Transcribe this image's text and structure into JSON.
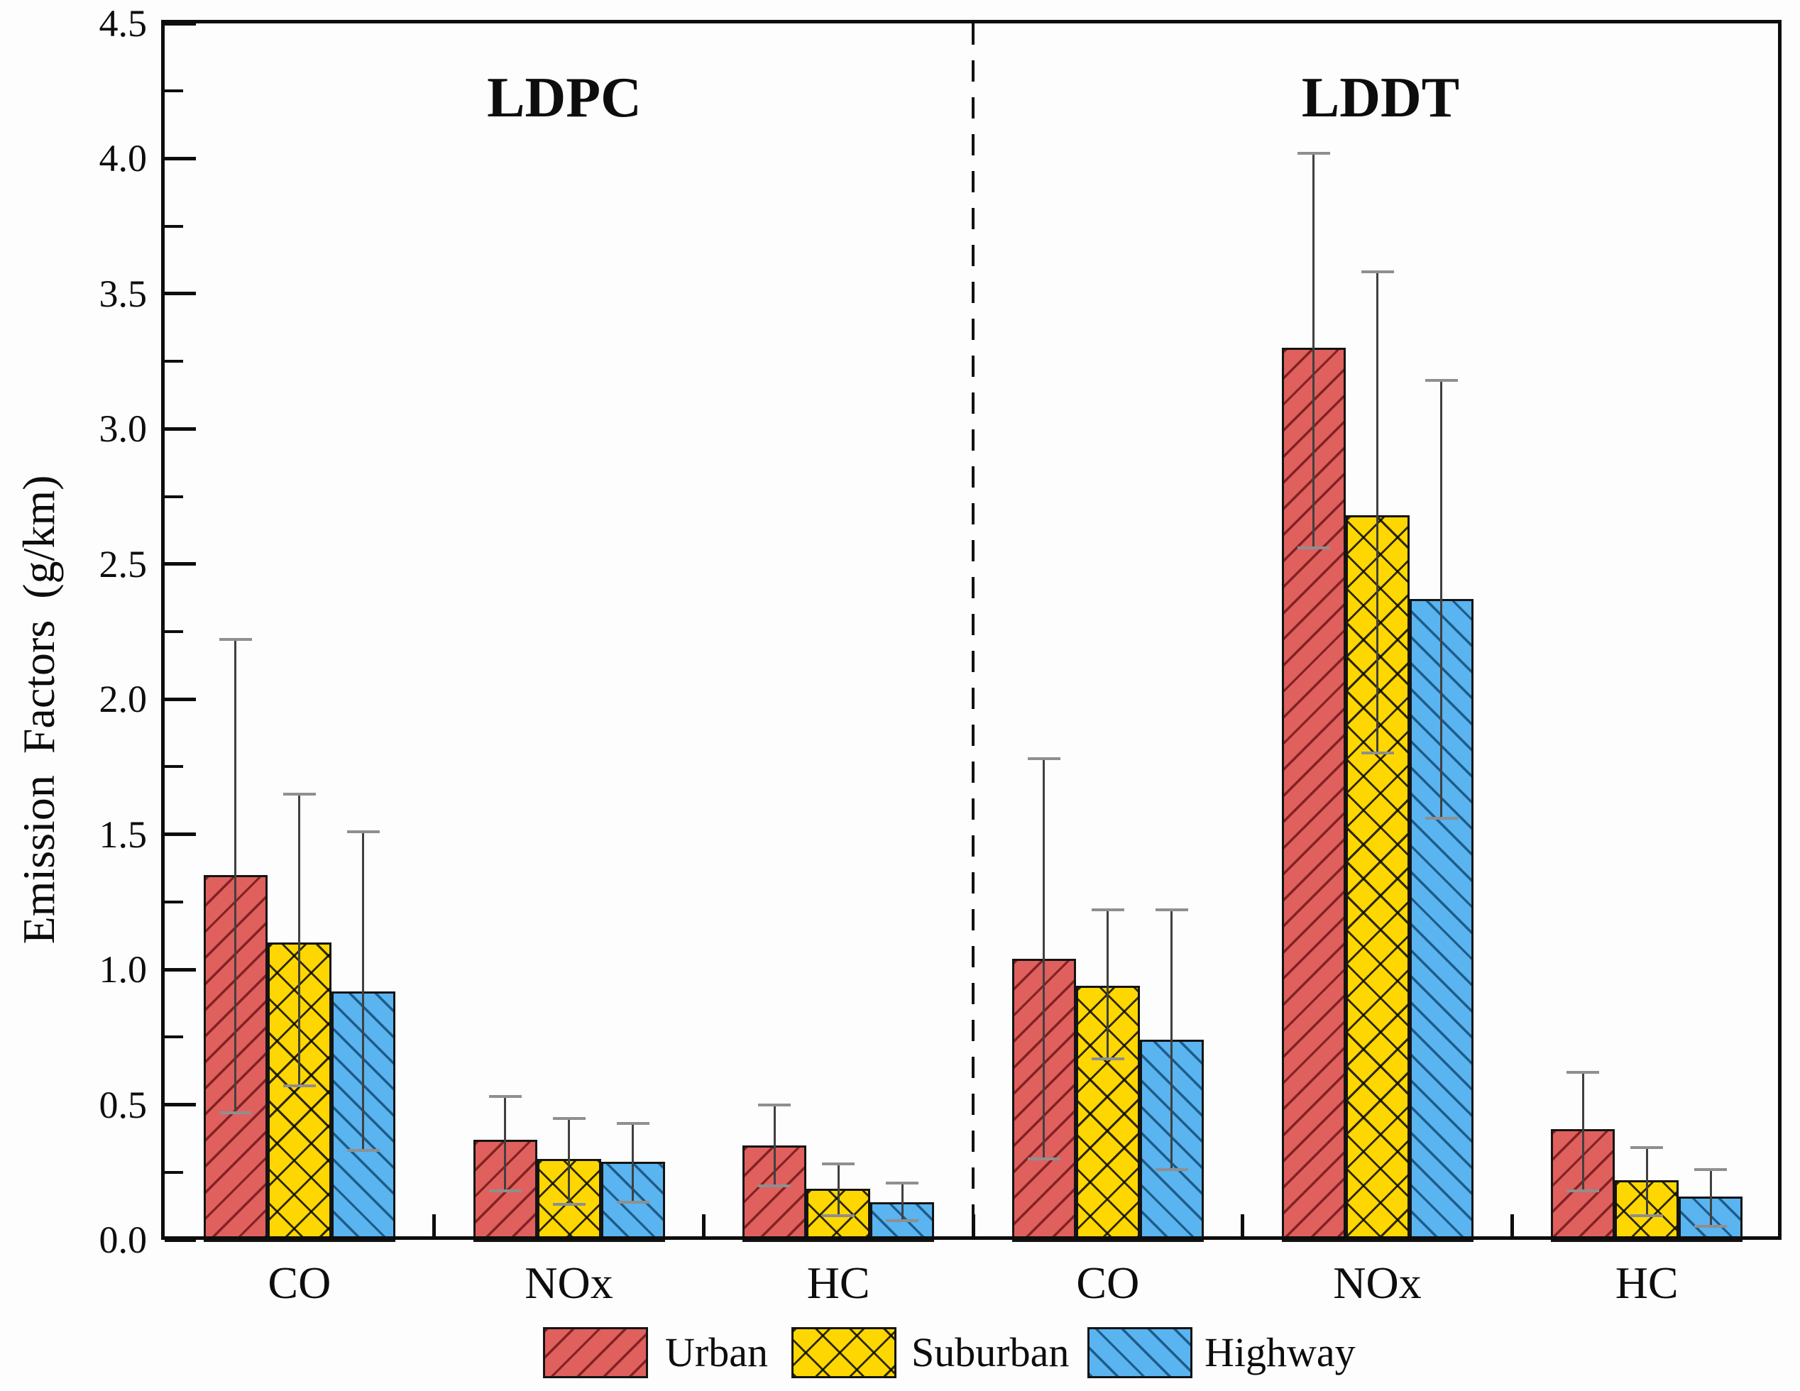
{
  "figure": {
    "y_axis": {
      "label": "Emission Factors  (g/km)",
      "tick_labels": [
        "0.0",
        "0.5",
        "1.0",
        "1.5",
        "2.0",
        "2.5",
        "3.0",
        "3.5",
        "4.0",
        "4.5"
      ],
      "min": 0.0,
      "max": 4.5,
      "major_step": 0.5,
      "minor_step": 0.25
    },
    "panel_titles": [
      "LDPC",
      "LDDT"
    ],
    "legend": {
      "items": [
        "Urban",
        "Suburban",
        "Highway"
      ]
    }
  },
  "chart_data": {
    "type": "bar",
    "title": "",
    "xlabel": "",
    "ylabel": "Emission Factors (g/km)",
    "ylim": [
      0,
      4.5
    ],
    "grid": false,
    "legend_position": "bottom",
    "error_bars": true,
    "panels": [
      {
        "label": "LDPC",
        "categories": [
          "CO",
          "NOx",
          "HC"
        ],
        "series": [
          {
            "name": "Urban",
            "color": "#e0605e",
            "hatch": "/",
            "values": [
              1.35,
              0.37,
              0.35
            ],
            "err_low": [
              0.47,
              0.18,
              0.2
            ],
            "err_high": [
              2.22,
              0.53,
              0.5
            ]
          },
          {
            "name": "Suburban",
            "color": "#ffd700",
            "hatch": "x",
            "values": [
              1.1,
              0.3,
              0.19
            ],
            "err_low": [
              0.57,
              0.13,
              0.09
            ],
            "err_high": [
              1.65,
              0.45,
              0.28
            ]
          },
          {
            "name": "Highway",
            "color": "#5ab4f0",
            "hatch": "\\",
            "values": [
              0.92,
              0.29,
              0.14
            ],
            "err_low": [
              0.33,
              0.14,
              0.07
            ],
            "err_high": [
              1.51,
              0.43,
              0.21
            ]
          }
        ]
      },
      {
        "label": "LDDT",
        "categories": [
          "CO",
          "NOx",
          "HC"
        ],
        "series": [
          {
            "name": "Urban",
            "color": "#e0605e",
            "hatch": "/",
            "values": [
              1.04,
              3.3,
              0.41
            ],
            "err_low": [
              0.3,
              2.56,
              0.18
            ],
            "err_high": [
              1.78,
              4.02,
              0.62
            ]
          },
          {
            "name": "Suburban",
            "color": "#ffd700",
            "hatch": "x",
            "values": [
              0.94,
              2.68,
              0.22
            ],
            "err_low": [
              0.67,
              1.8,
              0.09
            ],
            "err_high": [
              1.22,
              3.58,
              0.34
            ]
          },
          {
            "name": "Highway",
            "color": "#5ab4f0",
            "hatch": "\\",
            "values": [
              0.74,
              2.37,
              0.16
            ],
            "err_low": [
              0.26,
              1.56,
              0.05
            ],
            "err_high": [
              1.22,
              3.18,
              0.26
            ]
          }
        ]
      }
    ]
  }
}
